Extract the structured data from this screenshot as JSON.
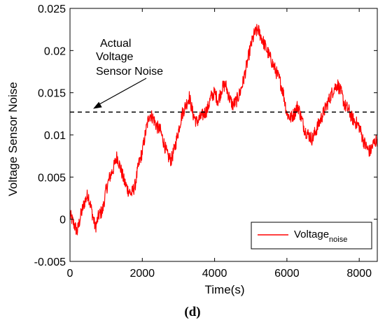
{
  "chart_data": {
    "type": "line",
    "xlabel": "Time(s)",
    "ylabel": "Voltage Sensor Noise",
    "panel_label": "(d)",
    "xlim": [
      0,
      8500
    ],
    "ylim": [
      -0.005,
      0.025
    ],
    "xticks": [
      "0",
      "2000",
      "4000",
      "6000",
      "8000"
    ],
    "yticks": [
      "-0.005",
      "0",
      "0.005",
      "0.01",
      "0.015",
      "0.02",
      "0.025"
    ],
    "grid": false,
    "legend": {
      "placement": "bottom-right",
      "label_main": "Voltage",
      "label_sub": "noise"
    },
    "annotation": {
      "lines": [
        "Actual",
        "Voltage",
        "Sensor Noise"
      ],
      "reference_value": 0.0127,
      "arrow_target": {
        "x": 640,
        "y": 0.0131
      }
    },
    "series": [
      {
        "color": "#ff0000",
        "x": [
          0,
          100,
          200,
          300,
          400,
          500,
          600,
          700,
          800,
          900,
          1000,
          1100,
          1200,
          1300,
          1400,
          1500,
          1600,
          1700,
          1800,
          1900,
          2000,
          2100,
          2200,
          2300,
          2400,
          2500,
          2600,
          2700,
          2800,
          2900,
          3000,
          3100,
          3200,
          3300,
          3400,
          3500,
          3600,
          3700,
          3800,
          3900,
          4000,
          4100,
          4200,
          4300,
          4400,
          4500,
          4600,
          4700,
          4800,
          4900,
          5000,
          5100,
          5200,
          5300,
          5400,
          5500,
          5600,
          5700,
          5800,
          5900,
          6000,
          6100,
          6200,
          6300,
          6400,
          6500,
          6600,
          6700,
          6800,
          6900,
          7000,
          7100,
          7200,
          7300,
          7400,
          7500,
          7600,
          7700,
          7800,
          7900,
          8000,
          8100,
          8200,
          8300,
          8400,
          8500
        ],
        "values": [
          0.0005,
          -0.0005,
          -0.0015,
          0.0005,
          0.002,
          0.003,
          0.001,
          -0.001,
          0.0005,
          0.001,
          0.0035,
          0.005,
          0.006,
          0.0075,
          0.006,
          0.0045,
          0.0035,
          0.003,
          0.004,
          0.0065,
          0.008,
          0.0105,
          0.0125,
          0.012,
          0.011,
          0.0105,
          0.009,
          0.0075,
          0.007,
          0.0085,
          0.0105,
          0.0125,
          0.0135,
          0.0145,
          0.0125,
          0.0115,
          0.012,
          0.0125,
          0.013,
          0.0145,
          0.015,
          0.014,
          0.0155,
          0.016,
          0.0145,
          0.0135,
          0.014,
          0.015,
          0.0165,
          0.0185,
          0.0205,
          0.022,
          0.0225,
          0.0215,
          0.0205,
          0.0195,
          0.0185,
          0.0175,
          0.0165,
          0.015,
          0.0125,
          0.012,
          0.0125,
          0.0135,
          0.012,
          0.0105,
          0.01,
          0.0095,
          0.0105,
          0.0115,
          0.0125,
          0.0135,
          0.0145,
          0.0155,
          0.016,
          0.015,
          0.0135,
          0.013,
          0.012,
          0.0115,
          0.011,
          0.0095,
          0.0085,
          0.008,
          0.009,
          0.0095
        ]
      }
    ]
  }
}
